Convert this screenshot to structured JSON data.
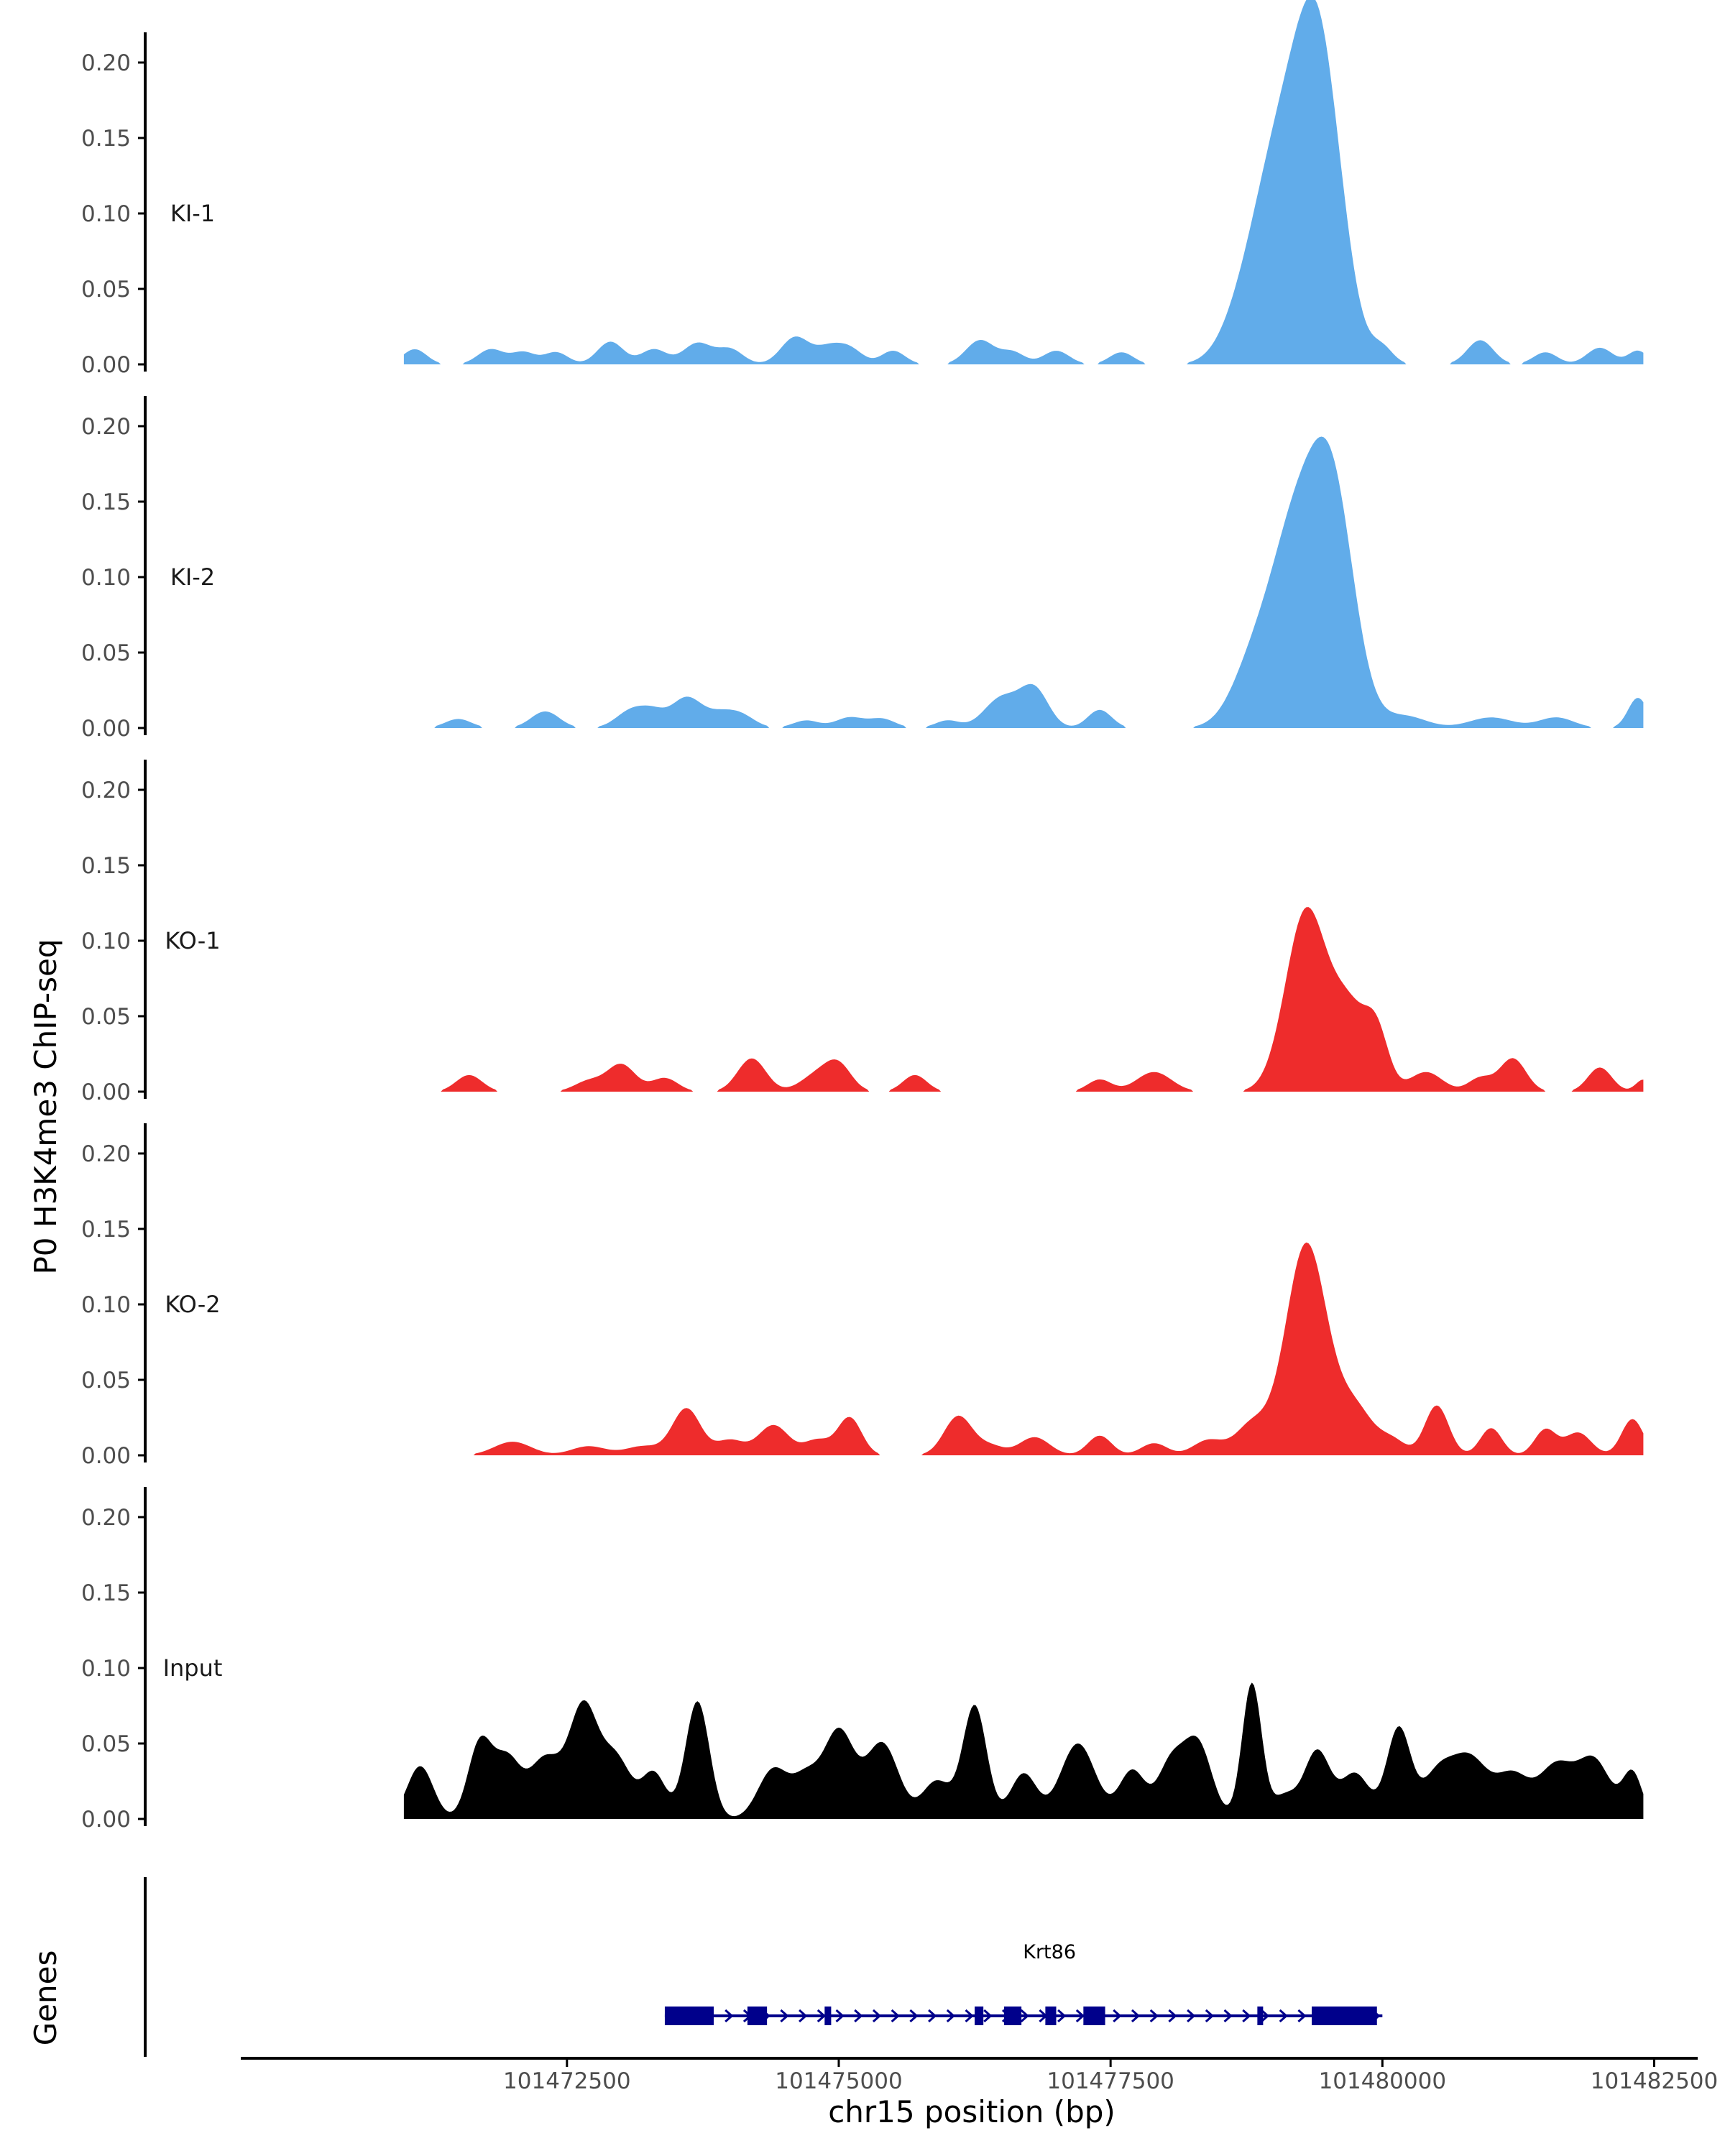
{
  "chart_data": {
    "type": "area",
    "ylabel": "P0 H3K4me3 ChIP-seq",
    "xlabel": "chr15 position (bp)",
    "genes_label": "Genes",
    "xlim": [
      101469500,
      101482900
    ],
    "ylim": [
      0,
      0.21
    ],
    "y_ticks": [
      "0.00",
      "0.05",
      "0.10",
      "0.15",
      "0.20"
    ],
    "y_tick_values": [
      0,
      0.05,
      0.1,
      0.15,
      0.2
    ],
    "x_ticks": [
      "101472500",
      "101475000",
      "101477500",
      "101480000",
      "101482500"
    ],
    "x_tick_values": [
      101472500,
      101475000,
      101477500,
      101480000,
      101482500
    ],
    "colors": {
      "KI": "#61acea",
      "KO": "#ee2c2c",
      "Input": "#000000",
      "gene": "#00008b"
    },
    "series": [
      {
        "name": "KI-1",
        "color": "#61acea",
        "peaks": [
          [
            101471100,
            0.01,
            110
          ],
          [
            101471800,
            0.01,
            120
          ],
          [
            101472100,
            0.008,
            110
          ],
          [
            101472400,
            0.008,
            110
          ],
          [
            101472900,
            0.015,
            120
          ],
          [
            101473300,
            0.01,
            120
          ],
          [
            101473700,
            0.014,
            130
          ],
          [
            101474000,
            0.01,
            120
          ],
          [
            101474600,
            0.018,
            130
          ],
          [
            101474900,
            0.01,
            120
          ],
          [
            101475100,
            0.01,
            120
          ],
          [
            101475500,
            0.009,
            110
          ],
          [
            101476300,
            0.016,
            130
          ],
          [
            101476600,
            0.008,
            110
          ],
          [
            101477000,
            0.009,
            120
          ],
          [
            101477600,
            0.008,
            110
          ],
          [
            101478700,
            0.02,
            200
          ],
          [
            101479050,
            0.13,
            240
          ],
          [
            101479420,
            0.195,
            210
          ],
          [
            101480000,
            0.01,
            100
          ],
          [
            101480900,
            0.016,
            120
          ],
          [
            101481500,
            0.008,
            110
          ],
          [
            101482000,
            0.011,
            120
          ],
          [
            101482350,
            0.009,
            90
          ]
        ]
      },
      {
        "name": "KI-2",
        "color": "#61acea",
        "peaks": [
          [
            101471500,
            0.006,
            120
          ],
          [
            101472300,
            0.011,
            130
          ],
          [
            101473100,
            0.012,
            140
          ],
          [
            101473300,
            0.008,
            110
          ],
          [
            101473600,
            0.02,
            140
          ],
          [
            101473900,
            0.008,
            130
          ],
          [
            101474100,
            0.008,
            130
          ],
          [
            101474700,
            0.005,
            120
          ],
          [
            101475100,
            0.007,
            130
          ],
          [
            101475400,
            0.006,
            120
          ],
          [
            101476000,
            0.005,
            110
          ],
          [
            101476500,
            0.02,
            160
          ],
          [
            101476800,
            0.025,
            130
          ],
          [
            101477400,
            0.012,
            110
          ],
          [
            101478800,
            0.035,
            200
          ],
          [
            101479200,
            0.125,
            230
          ],
          [
            101479550,
            0.14,
            200
          ],
          [
            101480200,
            0.008,
            200
          ],
          [
            101481000,
            0.007,
            200
          ],
          [
            101481600,
            0.007,
            160
          ],
          [
            101482350,
            0.02,
            90
          ]
        ]
      },
      {
        "name": "KO-1",
        "color": "#ee2c2c",
        "peaks": [
          [
            101471600,
            0.011,
            120
          ],
          [
            101472700,
            0.007,
            130
          ],
          [
            101473000,
            0.018,
            130
          ],
          [
            101473400,
            0.009,
            120
          ],
          [
            101474200,
            0.022,
            130
          ],
          [
            101474800,
            0.011,
            150
          ],
          [
            101475000,
            0.016,
            120
          ],
          [
            101475700,
            0.011,
            110
          ],
          [
            101477400,
            0.008,
            110
          ],
          [
            101477900,
            0.013,
            160
          ],
          [
            101479300,
            0.12,
            190
          ],
          [
            101479700,
            0.05,
            160
          ],
          [
            101479950,
            0.035,
            110
          ],
          [
            101480400,
            0.013,
            150
          ],
          [
            101480900,
            0.009,
            110
          ],
          [
            101481200,
            0.022,
            120
          ],
          [
            101482000,
            0.016,
            110
          ],
          [
            101482400,
            0.008,
            70
          ]
        ]
      },
      {
        "name": "KO-2",
        "color": "#ee2c2c",
        "peaks": [
          [
            101472000,
            0.009,
            170
          ],
          [
            101472700,
            0.006,
            160
          ],
          [
            101473200,
            0.006,
            160
          ],
          [
            101473600,
            0.031,
            130
          ],
          [
            101474000,
            0.01,
            130
          ],
          [
            101474400,
            0.02,
            140
          ],
          [
            101474800,
            0.01,
            120
          ],
          [
            101475100,
            0.025,
            110
          ],
          [
            101476100,
            0.026,
            130
          ],
          [
            101476400,
            0.006,
            120
          ],
          [
            101476800,
            0.012,
            140
          ],
          [
            101477400,
            0.013,
            110
          ],
          [
            101477900,
            0.008,
            120
          ],
          [
            101478400,
            0.01,
            140
          ],
          [
            101478800,
            0.02,
            150
          ],
          [
            101479300,
            0.14,
            190
          ],
          [
            101479750,
            0.03,
            170
          ],
          [
            101480100,
            0.009,
            120
          ],
          [
            101480500,
            0.033,
            110
          ],
          [
            101481000,
            0.018,
            100
          ],
          [
            101481500,
            0.017,
            100
          ],
          [
            101481800,
            0.015,
            120
          ],
          [
            101482300,
            0.024,
            100
          ]
        ]
      },
      {
        "name": "Input",
        "color": "#000000",
        "peaks": [
          [
            101471150,
            0.035,
            120
          ],
          [
            101471700,
            0.05,
            110
          ],
          [
            101471950,
            0.038,
            120
          ],
          [
            101472300,
            0.04,
            150
          ],
          [
            101472650,
            0.072,
            130
          ],
          [
            101472950,
            0.04,
            140
          ],
          [
            101473300,
            0.03,
            110
          ],
          [
            101473700,
            0.078,
            110
          ],
          [
            101474400,
            0.033,
            140
          ],
          [
            101474700,
            0.025,
            120
          ],
          [
            101475000,
            0.058,
            140
          ],
          [
            101475400,
            0.05,
            150
          ],
          [
            101475900,
            0.025,
            130
          ],
          [
            101476250,
            0.075,
            110
          ],
          [
            101476700,
            0.03,
            120
          ],
          [
            101477200,
            0.05,
            160
          ],
          [
            101477700,
            0.032,
            120
          ],
          [
            101478050,
            0.035,
            120
          ],
          [
            101478300,
            0.05,
            130
          ],
          [
            101478800,
            0.09,
            90
          ],
          [
            101479100,
            0.015,
            110
          ],
          [
            101479400,
            0.045,
            120
          ],
          [
            101479750,
            0.03,
            130
          ],
          [
            101480150,
            0.06,
            110
          ],
          [
            101480500,
            0.027,
            140
          ],
          [
            101480800,
            0.04,
            170
          ],
          [
            101481200,
            0.028,
            150
          ],
          [
            101481600,
            0.035,
            160
          ],
          [
            101481950,
            0.038,
            150
          ],
          [
            101482300,
            0.03,
            90
          ]
        ]
      }
    ],
    "gene": {
      "name": "Krt86",
      "start": 101473400,
      "end": 101480000,
      "exons": [
        [
          101473400,
          101473850
        ],
        [
          101474160,
          101474340
        ],
        [
          101474870,
          101474930
        ],
        [
          101476250,
          101476330
        ],
        [
          101476520,
          101476680
        ],
        [
          101476900,
          101477000
        ],
        [
          101477250,
          101477450
        ],
        [
          101478850,
          101478900
        ],
        [
          101479350,
          101479950
        ]
      ]
    }
  }
}
